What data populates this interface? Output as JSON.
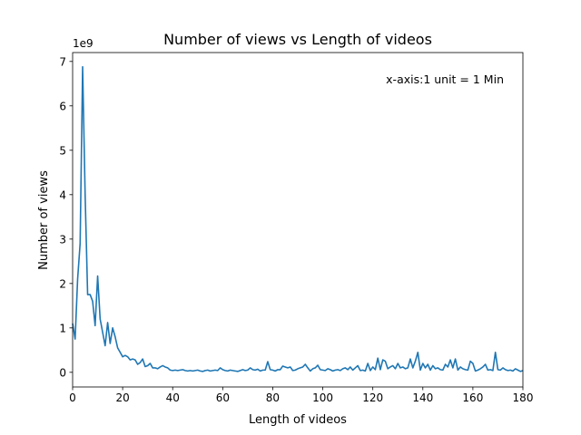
{
  "chart_data": {
    "type": "line",
    "title": "Number of views vs Length of videos",
    "xlabel": "Length of videos",
    "ylabel": "Number of views",
    "y_multiplier_label": "1e9",
    "annotation": "x-axis:1 unit = 1 Min",
    "xlim": [
      0,
      180
    ],
    "ylim": [
      -0.33,
      7.2
    ],
    "xticks": [
      0,
      20,
      40,
      60,
      80,
      100,
      120,
      140,
      160,
      180
    ],
    "xtick_labels": [
      "0",
      "20",
      "40",
      "60",
      "80",
      "100",
      "120",
      "140",
      "160",
      "180"
    ],
    "yticks": [
      0,
      1,
      2,
      3,
      4,
      5,
      6,
      7
    ],
    "ytick_labels": [
      "0",
      "1",
      "2",
      "3",
      "4",
      "5",
      "6",
      "7"
    ],
    "grid": false,
    "color": "#1f77b4",
    "series": [
      {
        "x": [
          0,
          1,
          2,
          3,
          4,
          5,
          6,
          7,
          8,
          9,
          10,
          11,
          12,
          13,
          14,
          15,
          16,
          17,
          18,
          19,
          20,
          21,
          22,
          23,
          24,
          25,
          26,
          27,
          28,
          29,
          30,
          31,
          32,
          33,
          34,
          35,
          36,
          37,
          38,
          39,
          40,
          41,
          42,
          43,
          44,
          45,
          46,
          47,
          48,
          49,
          50,
          51,
          52,
          53,
          54,
          55,
          56,
          57,
          58,
          59,
          60,
          61,
          62,
          63,
          64,
          65,
          66,
          67,
          68,
          69,
          70,
          71,
          72,
          73,
          74,
          75,
          76,
          77,
          78,
          79,
          80,
          81,
          82,
          83,
          84,
          85,
          86,
          87,
          88,
          89,
          90,
          91,
          92,
          93,
          94,
          95,
          96,
          97,
          98,
          99,
          100,
          101,
          102,
          103,
          104,
          105,
          106,
          107,
          108,
          109,
          110,
          111,
          112,
          113,
          114,
          115,
          116,
          117,
          118,
          119,
          120,
          121,
          122,
          123,
          124,
          125,
          126,
          127,
          128,
          129,
          130,
          131,
          132,
          133,
          134,
          135,
          136,
          137,
          138,
          139,
          140,
          141,
          142,
          143,
          144,
          145,
          146,
          147,
          148,
          149,
          150,
          151,
          152,
          153,
          154,
          155,
          156,
          157,
          158,
          159,
          160,
          161,
          162,
          163,
          164,
          165,
          166,
          167,
          168,
          169,
          170,
          171,
          172,
          173,
          174,
          175,
          176,
          177,
          178,
          179,
          180
        ],
        "values": [
          1.1,
          0.75,
          2.1,
          2.9,
          6.88,
          4.0,
          1.75,
          1.75,
          1.6,
          1.05,
          2.17,
          1.2,
          0.9,
          0.6,
          1.12,
          0.65,
          1.0,
          0.8,
          0.55,
          0.45,
          0.35,
          0.38,
          0.35,
          0.28,
          0.3,
          0.28,
          0.18,
          0.22,
          0.3,
          0.13,
          0.15,
          0.2,
          0.1,
          0.1,
          0.08,
          0.12,
          0.15,
          0.12,
          0.1,
          0.05,
          0.04,
          0.05,
          0.04,
          0.05,
          0.06,
          0.04,
          0.03,
          0.04,
          0.03,
          0.04,
          0.05,
          0.03,
          0.02,
          0.04,
          0.05,
          0.03,
          0.04,
          0.05,
          0.04,
          0.1,
          0.06,
          0.04,
          0.03,
          0.05,
          0.04,
          0.03,
          0.02,
          0.04,
          0.06,
          0.04,
          0.05,
          0.1,
          0.06,
          0.05,
          0.07,
          0.03,
          0.05,
          0.05,
          0.24,
          0.06,
          0.05,
          0.03,
          0.06,
          0.06,
          0.14,
          0.12,
          0.1,
          0.12,
          0.04,
          0.05,
          0.08,
          0.1,
          0.12,
          0.18,
          0.1,
          0.03,
          0.08,
          0.1,
          0.16,
          0.06,
          0.05,
          0.04,
          0.08,
          0.06,
          0.03,
          0.05,
          0.06,
          0.04,
          0.08,
          0.1,
          0.06,
          0.12,
          0.05,
          0.1,
          0.15,
          0.04,
          0.05,
          0.03,
          0.2,
          0.04,
          0.12,
          0.06,
          0.32,
          0.06,
          0.28,
          0.25,
          0.08,
          0.12,
          0.15,
          0.08,
          0.2,
          0.1,
          0.12,
          0.08,
          0.1,
          0.3,
          0.1,
          0.25,
          0.45,
          0.05,
          0.2,
          0.1,
          0.18,
          0.05,
          0.15,
          0.08,
          0.1,
          0.06,
          0.05,
          0.18,
          0.12,
          0.28,
          0.1,
          0.3,
          0.05,
          0.12,
          0.08,
          0.06,
          0.05,
          0.25,
          0.2,
          0.03,
          0.05,
          0.08,
          0.12,
          0.18,
          0.05,
          0.06,
          0.04,
          0.45,
          0.06,
          0.05,
          0.1,
          0.06,
          0.04,
          0.05,
          0.03,
          0.08,
          0.05,
          0.02,
          0.04
        ]
      }
    ]
  }
}
